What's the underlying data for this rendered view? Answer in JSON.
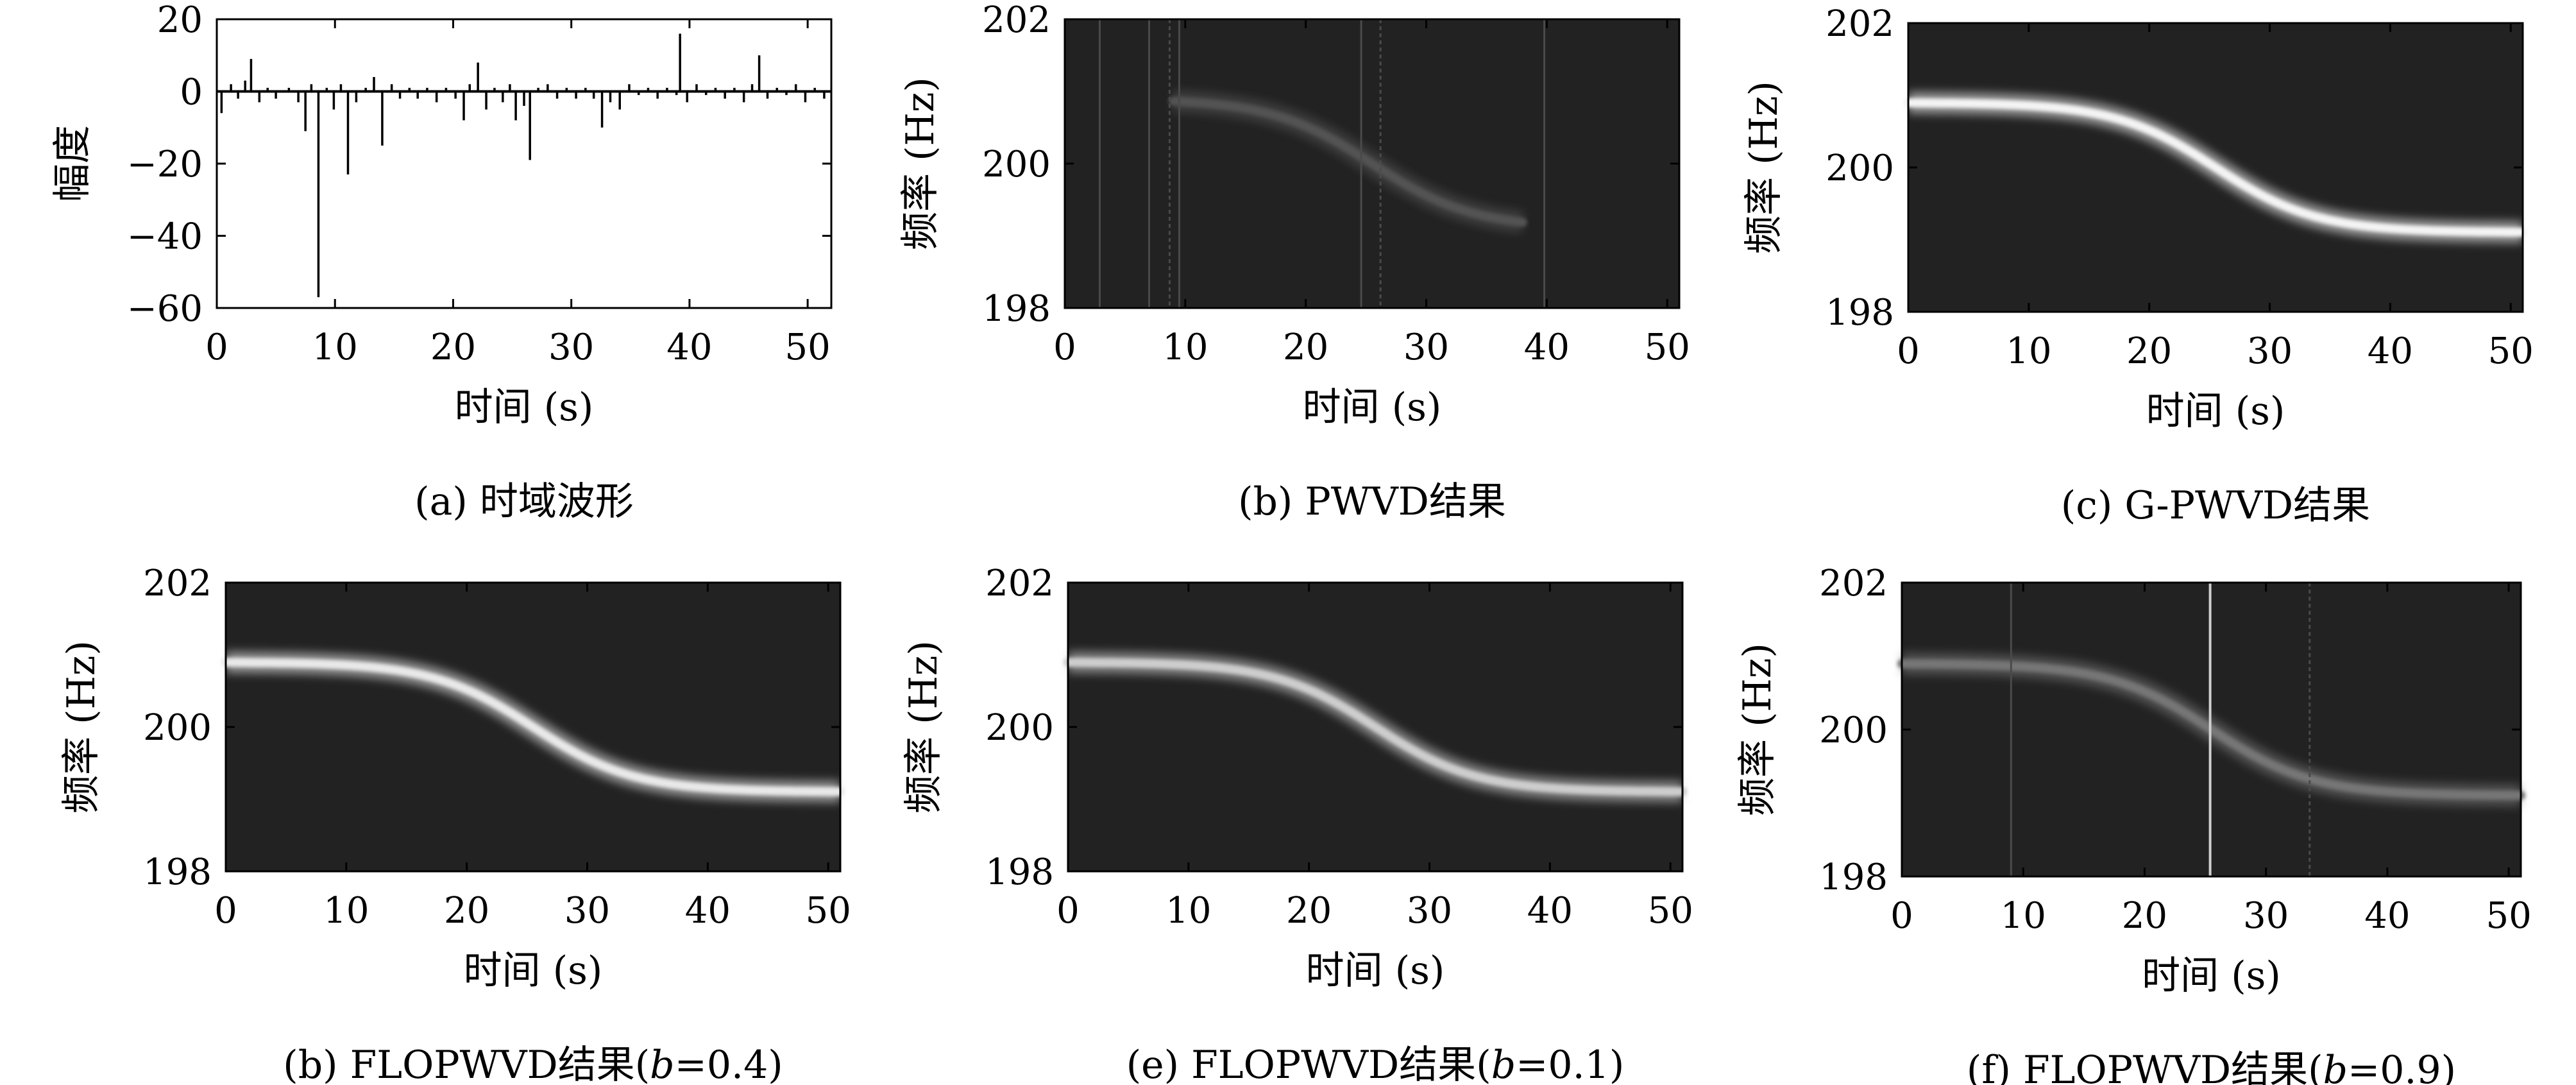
{
  "chart_data": [
    {
      "id": "a",
      "type": "line",
      "caption": "(a) 时域波形",
      "xlabel": "时间 (s)",
      "ylabel": "幅度",
      "xlim": [
        0,
        52
      ],
      "ylim": [
        -60,
        20
      ],
      "xticks": [
        "0",
        "10",
        "20",
        "30",
        "40",
        "50"
      ],
      "yticks": [
        "20",
        "0",
        "−20",
        "−40",
        "−60"
      ],
      "xtick_values": [
        0,
        10,
        20,
        30,
        40,
        50
      ],
      "ytick_values": [
        20,
        0,
        -20,
        -40,
        -60
      ],
      "series": [
        {
          "x": [
            0.4,
            1.2,
            1.8,
            2.4,
            2.9,
            3.6,
            4.3,
            5.0,
            6.1,
            6.9,
            7.5,
            8.0,
            8.6,
            9.3,
            9.9,
            10.5,
            11.1,
            11.8,
            12.6,
            13.3,
            14.0,
            14.8,
            15.5,
            16.3,
            17.0,
            17.8,
            18.6,
            19.4,
            20.2,
            20.9,
            21.4,
            22.1,
            22.8,
            23.5,
            24.2,
            24.8,
            25.3,
            26.0,
            26.5,
            27.2,
            28.0,
            28.8,
            29.6,
            30.4,
            31.2,
            31.9,
            32.6,
            33.3,
            34.1,
            34.9,
            35.7,
            36.5,
            37.3,
            38.1,
            38.9,
            39.2,
            39.8,
            40.6,
            41.4,
            42.2,
            43.0,
            43.8,
            44.6,
            45.3,
            45.9,
            46.6,
            47.4,
            48.2,
            49.0,
            49.8,
            50.6,
            51.4
          ],
          "values": [
            -6,
            2,
            -2,
            3,
            9,
            -3,
            1,
            -2,
            1,
            -3,
            -11,
            2,
            -57,
            1,
            -5,
            2,
            -23,
            -3,
            1,
            4,
            -15,
            2,
            -2,
            1,
            -2,
            1,
            -3,
            1,
            -2,
            -8,
            2,
            8,
            -5,
            1,
            -3,
            2,
            -8,
            -4,
            -19,
            1,
            2,
            -2,
            1,
            -2,
            1,
            -2,
            -10,
            -3,
            -5,
            2,
            -1,
            1,
            -2,
            1,
            -1,
            16,
            -3,
            2,
            -1,
            1,
            -2,
            1,
            -3,
            2,
            10,
            -2,
            1,
            -1,
            2,
            -3,
            1,
            -2
          ]
        }
      ]
    },
    {
      "id": "b",
      "type": "heatmap",
      "caption": "(b) PWVD结果",
      "xlabel": "时间 (s)",
      "ylabel": "频率 (Hz)",
      "xlim": [
        0,
        51
      ],
      "ylim": [
        198,
        202
      ],
      "xticks": [
        "0",
        "10",
        "20",
        "30",
        "40",
        "50"
      ],
      "yticks": [
        "202",
        "200",
        "198"
      ],
      "xtick_values": [
        0,
        10,
        20,
        30,
        40,
        50
      ],
      "ytick_values": [
        202,
        200,
        198
      ],
      "ridge_brightness": 0.22,
      "ridge_x_range": [
        9,
        38
      ],
      "vertical_artifacts": [
        2.9,
        7.0,
        8.7,
        9.5,
        24.6,
        26.2,
        39.8
      ]
    },
    {
      "id": "c",
      "type": "heatmap",
      "caption": "(c) G-PWVD结果",
      "xlabel": "时间 (s)",
      "ylabel": "频率 (Hz)",
      "xlim": [
        0,
        51
      ],
      "ylim": [
        198,
        202
      ],
      "xticks": [
        "0",
        "10",
        "20",
        "30",
        "40",
        "50"
      ],
      "yticks": [
        "202",
        "200",
        "198"
      ],
      "xtick_values": [
        0,
        10,
        20,
        30,
        40,
        50
      ],
      "ytick_values": [
        202,
        200,
        198
      ],
      "ridge_brightness": 0.95,
      "ridge_x_range": [
        0,
        51
      ],
      "vertical_artifacts": []
    },
    {
      "id": "d",
      "type": "heatmap",
      "caption": "(b) FLOPWVD结果(b=0.4)",
      "caption_plain": "(b) FLOPWVD结果(",
      "caption_italic": "b",
      "caption_rest": "=0.4)",
      "xlabel": "时间 (s)",
      "ylabel": "频率 (Hz)",
      "xlim": [
        0,
        51
      ],
      "ylim": [
        198,
        202
      ],
      "xticks": [
        "0",
        "10",
        "20",
        "30",
        "40",
        "50"
      ],
      "yticks": [
        "202",
        "200",
        "198"
      ],
      "xtick_values": [
        0,
        10,
        20,
        30,
        40,
        50
      ],
      "ytick_values": [
        202,
        200,
        198
      ],
      "ridge_brightness": 0.9,
      "ridge_x_range": [
        0,
        51
      ],
      "vertical_artifacts": []
    },
    {
      "id": "e",
      "type": "heatmap",
      "caption": "(e) FLOPWVD结果(b=0.1)",
      "caption_plain": "(e) FLOPWVD结果(",
      "caption_italic": "b",
      "caption_rest": "=0.1)",
      "xlabel": "时间 (s)",
      "ylabel": "频率 (Hz)",
      "xlim": [
        0,
        51
      ],
      "ylim": [
        198,
        202
      ],
      "xticks": [
        "0",
        "10",
        "20",
        "30",
        "40",
        "50"
      ],
      "yticks": [
        "202",
        "200",
        "198"
      ],
      "xtick_values": [
        0,
        10,
        20,
        30,
        40,
        50
      ],
      "ytick_values": [
        202,
        200,
        198
      ],
      "ridge_brightness": 0.78,
      "ridge_x_range": [
        0,
        51
      ],
      "vertical_artifacts": []
    },
    {
      "id": "f",
      "type": "heatmap",
      "caption": "(f) FLOPWVD结果(b=0.9)",
      "caption_plain": "(f) FLOPWVD结果(",
      "caption_italic": "b",
      "caption_rest": "=0.9)",
      "xlabel": "时间 (s)",
      "ylabel": "频率 (Hz)",
      "xlim": [
        0,
        51
      ],
      "ylim": [
        198,
        202
      ],
      "xticks": [
        "0",
        "10",
        "20",
        "30",
        "40",
        "50"
      ],
      "yticks": [
        "202",
        "200",
        "198"
      ],
      "xtick_values": [
        0,
        10,
        20,
        30,
        40,
        50
      ],
      "ytick_values": [
        202,
        200,
        198
      ],
      "ridge_brightness": 0.38,
      "ridge_x_range": [
        0,
        51
      ],
      "vertical_artifacts": [
        9.0,
        25.4,
        33.6
      ]
    }
  ],
  "ridge": {
    "f_high": 200.9,
    "f_low": 199.1,
    "t_center": 25.5,
    "t_scale": 4.2
  }
}
